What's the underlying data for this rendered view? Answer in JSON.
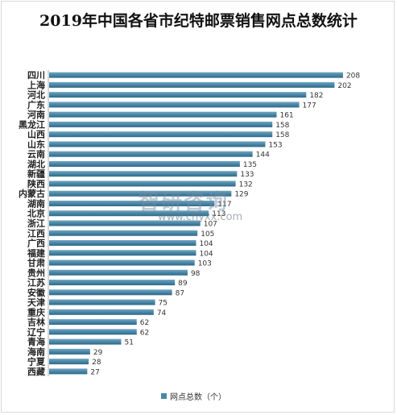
{
  "chart_data": {
    "type": "bar",
    "orientation": "horizontal",
    "title": "2019年中国各省市纪特邮票销售网点总数统计",
    "categories": [
      "四川",
      "上海",
      "河北",
      "广东",
      "河南",
      "黑龙江",
      "山西",
      "山东",
      "云南",
      "湖北",
      "新疆",
      "陕西",
      "内蒙古",
      "湖南",
      "北京",
      "浙江",
      "江西",
      "广西",
      "福建",
      "甘肃",
      "贵州",
      "江苏",
      "安徽",
      "天津",
      "重庆",
      "吉林",
      "辽宁",
      "青海",
      "海南",
      "宁夏",
      "西藏"
    ],
    "series": [
      {
        "name": "网点总数（个）",
        "values": [
          208,
          202,
          182,
          177,
          161,
          158,
          158,
          153,
          144,
          135,
          133,
          132,
          129,
          117,
          113,
          107,
          105,
          104,
          104,
          103,
          98,
          89,
          87,
          75,
          74,
          62,
          62,
          51,
          29,
          28,
          27
        ]
      }
    ],
    "xlim": [
      0,
      220
    ],
    "grid": false,
    "legend_position": "bottom",
    "bar_color": "#4a86a6"
  },
  "watermark": {
    "logo_text": "智研咨询",
    "url": "www.chyxx.com"
  }
}
